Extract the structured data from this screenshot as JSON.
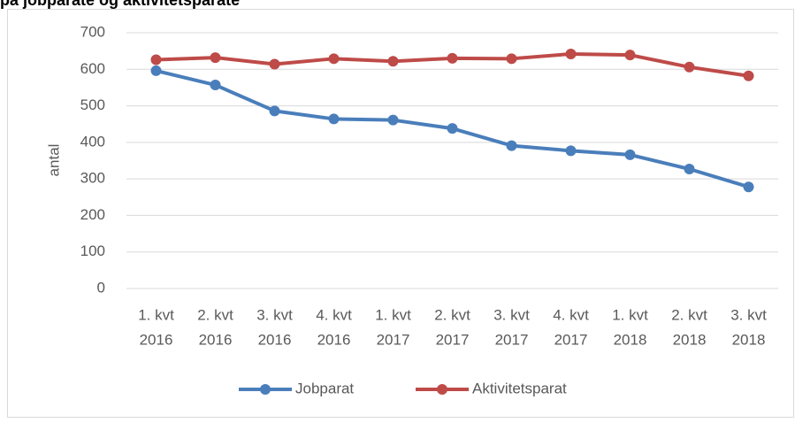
{
  "chart_data": {
    "type": "line",
    "title": "på jobparate og aktivitetsparate",
    "y_label": "antal",
    "categories": [
      [
        "1. kvt",
        "2016"
      ],
      [
        "2. kvt",
        "2016"
      ],
      [
        "3. kvt",
        "2016"
      ],
      [
        "4. kvt",
        "2016"
      ],
      [
        "1. kvt",
        "2017"
      ],
      [
        "2. kvt",
        "2017"
      ],
      [
        "3. kvt",
        "2017"
      ],
      [
        "4. kvt",
        "2017"
      ],
      [
        "1. kvt",
        "2018"
      ],
      [
        "2. kvt",
        "2018"
      ],
      [
        "3. kvt",
        "2018"
      ]
    ],
    "series": [
      {
        "name": "Jobparat",
        "color": "#4a7ebb",
        "values": [
          596,
          557,
          486,
          464,
          461,
          438,
          391,
          377,
          366,
          327,
          278
        ]
      },
      {
        "name": "Aktivitetsparat",
        "color": "#be4b48",
        "values": [
          626,
          632,
          614,
          629,
          622,
          630,
          629,
          642,
          639,
          606,
          582
        ]
      }
    ],
    "ylim": [
      0,
      700
    ],
    "yticks": [
      0,
      100,
      200,
      300,
      400,
      500,
      600,
      700
    ],
    "grid": true,
    "legend": "bottom"
  }
}
